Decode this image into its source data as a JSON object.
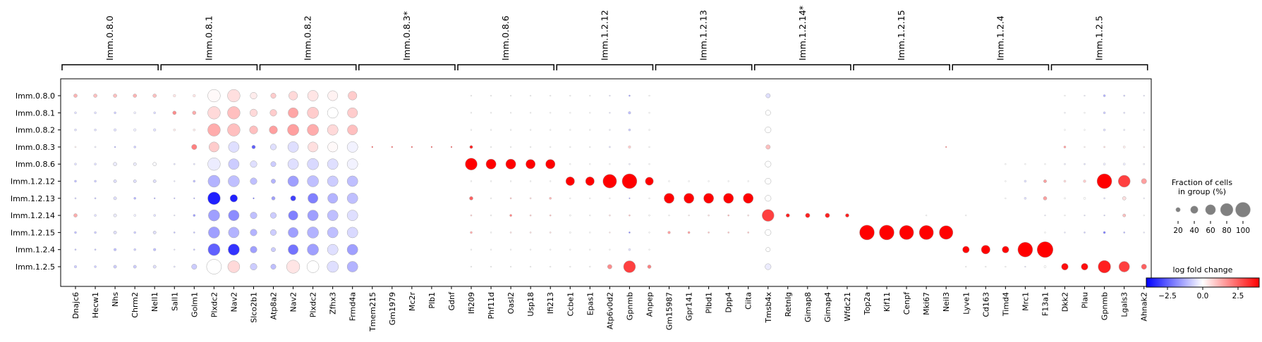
{
  "chart_data": {
    "type": "dotplot",
    "groups": [
      "Imm.0.8.0",
      "Imm.0.8.1",
      "Imm.0.8.2",
      "Imm.0.8.3",
      "Imm.0.8.6",
      "Imm.1.2.12",
      "Imm.1.2.13",
      "Imm.1.2.14",
      "Imm.1.2.15",
      "Imm.1.2.4",
      "Imm.1.2.5"
    ],
    "gene_groups": [
      {
        "label": "Imm.0.8.0",
        "genes": [
          "Dnajc6",
          "Hecw1",
          "Nhs",
          "Chrm2",
          "Nell1"
        ]
      },
      {
        "label": "Imm.0.8.1",
        "genes": [
          "Sall1",
          "Golm1",
          "Plxdc2",
          "Nav2",
          "Slco2b1"
        ]
      },
      {
        "label": "Imm.0.8.2",
        "genes": [
          "Atp8a2",
          "Nav2",
          "Plxdc2",
          "Zfhx3",
          "Frmd4a"
        ]
      },
      {
        "label": "Imm.0.8.3*",
        "genes": [
          "Tmem215",
          "Gm1979",
          "Mc2r",
          "Plb1",
          "Gdnf"
        ]
      },
      {
        "label": "Imm.0.8.6",
        "genes": [
          "Ifi209",
          "Phf11d",
          "Oasl2",
          "Usp18",
          "Ifi213"
        ]
      },
      {
        "label": "Imm.1.2.12",
        "genes": [
          "Ccbe1",
          "Epas1",
          "Atp6v0d2",
          "Gpnmb",
          "Anpep"
        ]
      },
      {
        "label": "Imm.1.2.13",
        "genes": [
          "Gm15987",
          "Gpr141",
          "Plbd1",
          "Dpp4",
          "Ciita"
        ]
      },
      {
        "label": "Imm.1.2.14*",
        "genes": [
          "Tmsb4x",
          "Retnlg",
          "Gimap8",
          "Gimap4",
          "Wfdc21"
        ]
      },
      {
        "label": "Imm.1.2.15",
        "genes": [
          "Top2a",
          "Kif11",
          "Cenpf",
          "Mki67",
          "Neil3"
        ]
      },
      {
        "label": "Imm.1.2.4",
        "genes": [
          "Lyve1",
          "Cd163",
          "Timd4",
          "Mrc1",
          "F13a1"
        ]
      },
      {
        "label": "Imm.1.2.5",
        "genes": [
          "Dkk2",
          "Plau",
          "Gpnmb",
          "Lgals3",
          "Ahnak2"
        ]
      }
    ],
    "fraction_pct": [
      [
        15,
        15,
        15,
        15,
        15,
        10,
        10,
        80,
        80,
        35,
        25,
        50,
        65,
        60,
        50,
        0,
        0,
        0,
        0,
        0,
        2,
        2,
        2,
        2,
        2,
        2,
        2,
        3,
        5,
        2,
        0,
        0,
        0,
        0,
        0,
        20,
        0,
        0,
        0,
        0,
        0,
        0,
        0,
        0,
        0,
        0,
        0,
        0,
        0,
        0,
        2,
        2,
        8,
        5,
        3
      ],
      [
        8,
        8,
        8,
        8,
        8,
        15,
        15,
        80,
        80,
        40,
        35,
        60,
        70,
        65,
        60,
        0,
        0,
        0,
        0,
        0,
        2,
        2,
        2,
        2,
        2,
        2,
        2,
        3,
        10,
        2,
        0,
        0,
        0,
        0,
        0,
        25,
        0,
        0,
        0,
        0,
        0,
        0,
        0,
        0,
        0,
        0,
        0,
        0,
        0,
        0,
        3,
        3,
        8,
        5,
        3
      ],
      [
        8,
        8,
        10,
        10,
        10,
        8,
        8,
        80,
        80,
        45,
        45,
        70,
        70,
        65,
        60,
        0,
        0,
        0,
        0,
        0,
        3,
        3,
        3,
        3,
        3,
        3,
        3,
        3,
        8,
        3,
        0,
        0,
        0,
        0,
        0,
        30,
        0,
        0,
        0,
        0,
        0,
        0,
        0,
        0,
        0,
        0,
        0,
        0,
        0,
        0,
        3,
        3,
        8,
        5,
        3
      ],
      [
        5,
        5,
        4,
        8,
        0,
        0,
        25,
        60,
        65,
        15,
        30,
        65,
        60,
        60,
        65,
        2,
        2,
        2,
        2,
        2,
        12,
        3,
        3,
        3,
        2,
        2,
        2,
        5,
        10,
        2,
        0,
        0,
        0,
        0,
        0,
        20,
        0,
        0,
        0,
        0,
        0,
        0,
        0,
        0,
        2,
        0,
        0,
        0,
        0,
        0,
        8,
        3,
        5,
        8,
        4
      ],
      [
        8,
        8,
        15,
        12,
        15,
        5,
        5,
        80,
        65,
        35,
        25,
        65,
        70,
        65,
        65,
        0,
        0,
        0,
        0,
        0,
        75,
        60,
        60,
        55,
        55,
        3,
        3,
        3,
        5,
        3,
        0,
        0,
        0,
        0,
        0,
        30,
        0,
        0,
        0,
        0,
        0,
        0,
        0,
        0,
        0,
        0,
        0,
        2,
        2,
        2,
        5,
        5,
        8,
        8,
        5
      ],
      [
        8,
        8,
        12,
        12,
        12,
        2,
        8,
        75,
        70,
        35,
        20,
        65,
        70,
        65,
        65,
        0,
        0,
        0,
        0,
        0,
        3,
        3,
        2,
        3,
        3,
        50,
        50,
        90,
        100,
        45,
        3,
        2,
        2,
        2,
        2,
        30,
        0,
        0,
        0,
        0,
        0,
        0,
        0,
        0,
        0,
        0,
        0,
        2,
        8,
        12,
        8,
        10,
        100,
        75,
        25
      ],
      [
        5,
        5,
        12,
        8,
        4,
        3,
        2,
        80,
        40,
        4,
        15,
        25,
        60,
        60,
        65,
        0,
        0,
        0,
        0,
        0,
        15,
        3,
        5,
        5,
        8,
        3,
        3,
        3,
        2,
        3,
        60,
        60,
        60,
        60,
        60,
        30,
        0,
        0,
        0,
        0,
        0,
        0,
        0,
        0,
        0,
        0,
        0,
        2,
        8,
        15,
        5,
        8,
        5,
        15,
        3
      ],
      [
        15,
        8,
        12,
        8,
        8,
        3,
        8,
        70,
        65,
        35,
        30,
        55,
        65,
        65,
        65,
        0,
        0,
        0,
        0,
        0,
        5,
        3,
        8,
        5,
        5,
        5,
        3,
        5,
        5,
        5,
        3,
        3,
        5,
        5,
        5,
        75,
        15,
        20,
        20,
        15,
        0,
        0,
        0,
        2,
        0,
        2,
        0,
        0,
        0,
        2,
        3,
        3,
        3,
        12,
        3
      ],
      [
        8,
        8,
        12,
        8,
        12,
        5,
        5,
        70,
        65,
        35,
        30,
        60,
        70,
        65,
        65,
        0,
        0,
        0,
        0,
        0,
        8,
        2,
        5,
        5,
        5,
        5,
        3,
        3,
        5,
        3,
        10,
        8,
        5,
        5,
        5,
        30,
        0,
        0,
        0,
        0,
        100,
        100,
        95,
        95,
        90,
        0,
        0,
        0,
        0,
        2,
        3,
        5,
        8,
        5,
        3
      ],
      [
        5,
        5,
        10,
        8,
        10,
        3,
        5,
        75,
        70,
        35,
        20,
        60,
        70,
        65,
        65,
        0,
        0,
        0,
        0,
        0,
        2,
        2,
        2,
        2,
        2,
        2,
        2,
        3,
        8,
        2,
        0,
        0,
        0,
        0,
        0,
        20,
        0,
        0,
        0,
        0,
        0,
        0,
        0,
        0,
        0,
        35,
        50,
        35,
        100,
        110,
        0,
        0,
        0,
        0,
        0
      ],
      [
        10,
        8,
        12,
        12,
        12,
        5,
        25,
        100,
        75,
        35,
        25,
        85,
        75,
        70,
        65,
        0,
        0,
        0,
        0,
        0,
        3,
        3,
        3,
        3,
        3,
        3,
        4,
        20,
        75,
        15,
        0,
        0,
        0,
        0,
        0,
        30,
        0,
        0,
        0,
        0,
        0,
        0,
        0,
        0,
        0,
        2,
        2,
        2,
        2,
        8,
        35,
        35,
        80,
        65,
        25
      ]
    ],
    "log_fold_change": [
      [
        1.2,
        1.0,
        1.0,
        1.2,
        1.0,
        0.4,
        0.4,
        0.1,
        0.5,
        0.3,
        0.8,
        0.6,
        0.4,
        0.2,
        0.8,
        0,
        0,
        0,
        0,
        0,
        0,
        0,
        0,
        0,
        0,
        0,
        0,
        -0.5,
        -1.5,
        0,
        0,
        0,
        0,
        0,
        0,
        -0.5,
        0,
        0,
        0,
        0,
        0,
        0,
        0,
        0,
        0,
        0,
        0,
        0,
        0,
        0,
        0,
        -0.3,
        -1.2,
        -0.8,
        -0.5
      ],
      [
        -0.5,
        -0.5,
        -0.8,
        -0.3,
        -0.6,
        1.8,
        1.3,
        0.6,
        1.0,
        0.6,
        0.8,
        1.4,
        0.8,
        0.0,
        0.8,
        0,
        0,
        0,
        0,
        0,
        0,
        0,
        0,
        0,
        0,
        0,
        0,
        -0.5,
        -1.0,
        0,
        0,
        0,
        0,
        0,
        0,
        0,
        0,
        0,
        0,
        0,
        0,
        0,
        0,
        0,
        0,
        0,
        0,
        0,
        0,
        0,
        -0.2,
        0,
        -0.8,
        -0.5,
        -0.3
      ],
      [
        -0.5,
        -0.5,
        -0.5,
        -0.3,
        -0.5,
        0.3,
        0.3,
        1.3,
        1.0,
        1.0,
        1.5,
        1.5,
        1.3,
        0.6,
        1.0,
        0,
        0,
        0,
        0,
        0,
        0,
        0,
        0,
        0,
        0,
        0,
        0,
        -0.3,
        -0.8,
        0,
        0,
        0,
        0,
        0,
        0,
        0,
        0,
        0,
        0,
        0,
        0,
        0,
        0,
        0,
        0,
        0,
        0,
        0,
        0,
        0,
        0,
        0,
        -0.5,
        -0.3,
        -0.2
      ],
      [
        0.2,
        -0.3,
        -1.5,
        -0.8,
        0,
        0,
        2.0,
        0.8,
        -0.5,
        -2.5,
        -0.5,
        -0.5,
        0.5,
        0.1,
        -0.2,
        3.5,
        3.5,
        3.5,
        3.5,
        3.5,
        3.5,
        0,
        0,
        0,
        0,
        0,
        0,
        -0.5,
        0.8,
        0,
        0,
        0,
        0,
        0,
        0,
        1.0,
        0,
        0,
        0,
        0,
        0,
        0,
        0,
        0,
        2.5,
        0,
        0,
        0,
        0,
        0,
        1.5,
        0.2,
        0.6,
        0.3,
        0.3
      ],
      [
        -0.5,
        -0.5,
        -0.3,
        -0.3,
        -0.1,
        -0.5,
        -0.5,
        -0.3,
        -0.8,
        -0.5,
        -0.8,
        -0.5,
        -0.6,
        -0.5,
        -0.2,
        0,
        0,
        0,
        0,
        0,
        4.0,
        4.0,
        4.0,
        4.0,
        4.0,
        0,
        0,
        0,
        -0.3,
        0,
        0,
        0,
        0,
        0,
        0,
        0,
        0,
        0,
        0,
        0,
        0,
        0,
        0,
        0,
        0,
        0,
        0,
        0,
        0,
        0,
        -0.3,
        -0.5,
        -0.3,
        -0.3,
        -0.3
      ],
      [
        -1.0,
        -0.8,
        -0.5,
        -0.5,
        -0.5,
        -0.5,
        -1.0,
        -1.2,
        -1.0,
        -1.0,
        -1.2,
        -1.5,
        -1.0,
        -0.8,
        -1.0,
        0,
        0,
        0,
        0,
        0,
        0,
        0,
        0,
        0,
        0,
        4.0,
        4.0,
        4.0,
        4.0,
        4.0,
        0,
        0,
        0,
        0,
        0,
        0,
        0,
        0,
        0,
        0,
        0,
        0,
        0,
        0,
        0,
        0,
        0,
        0,
        -0.5,
        1.5,
        0.6,
        0.8,
        4.0,
        3.0,
        1.5
      ],
      [
        -0.8,
        -1.0,
        -0.5,
        -1.2,
        -1.5,
        -1.2,
        -1.5,
        -3.5,
        -3.5,
        -2.5,
        -1.5,
        -3.0,
        -2.0,
        -1.2,
        -1.0,
        0,
        0,
        0,
        0,
        0,
        2.5,
        0,
        1.0,
        0.6,
        1.2,
        0,
        0,
        0,
        -1.5,
        0,
        4.0,
        4.0,
        4.0,
        4.0,
        4.0,
        0,
        0,
        0,
        0,
        0,
        0,
        0,
        0,
        0,
        0,
        0,
        0,
        0,
        -0.5,
        1.5,
        0,
        0,
        -0.5,
        0.5,
        -0.3
      ],
      [
        1.3,
        -0.5,
        -0.3,
        -0.3,
        -0.5,
        -0.5,
        -1.5,
        -1.5,
        -1.8,
        -1.0,
        -0.8,
        -2.0,
        -1.5,
        -1.0,
        -0.5,
        0,
        0,
        0,
        0,
        0,
        0.8,
        0,
        2.0,
        0.8,
        1.0,
        0,
        0,
        0.5,
        1.0,
        0,
        0,
        0.3,
        0.5,
        1.2,
        0.5,
        3.0,
        3.5,
        3.5,
        3.5,
        3.5,
        0,
        0,
        0,
        0,
        0,
        0,
        0,
        0,
        -0.5,
        -0.3,
        0,
        -0.5,
        -0.8,
        1.0,
        0
      ],
      [
        -1.0,
        -0.8,
        -0.5,
        -0.8,
        -0.5,
        -1.0,
        -1.0,
        -1.5,
        -1.2,
        -1.2,
        -0.8,
        -1.5,
        -1.2,
        -1.0,
        -0.6,
        0,
        0,
        0,
        0,
        0,
        1.3,
        0,
        0.5,
        0.5,
        0.5,
        0,
        0,
        0.5,
        -2.0,
        0,
        1.5,
        1.5,
        1.0,
        1.0,
        1.0,
        0,
        0,
        0,
        0,
        0,
        4.0,
        4.0,
        4.0,
        4.0,
        4.0,
        0,
        0,
        0,
        0,
        0,
        -0.5,
        -0.8,
        -2.0,
        -1.2,
        -0.5
      ],
      [
        -1.0,
        -1.0,
        -1.0,
        -0.8,
        -1.0,
        -0.5,
        -1.0,
        -2.5,
        -3.2,
        -1.5,
        -0.8,
        -2.2,
        -1.5,
        -0.5,
        -1.5,
        0,
        0,
        0,
        0,
        0,
        0,
        0,
        0,
        0,
        0,
        0,
        0,
        0,
        -0.5,
        0,
        0,
        0,
        0,
        0,
        0,
        0,
        0,
        0,
        0,
        0,
        0,
        0,
        0,
        0,
        0,
        4.0,
        4.0,
        4.0,
        4.0,
        4.0,
        0,
        0,
        0,
        0,
        0
      ],
      [
        -0.8,
        -0.8,
        -0.8,
        -0.8,
        -0.5,
        -0.5,
        -0.8,
        0.0,
        0.6,
        -0.8,
        -1.0,
        0.4,
        0.0,
        -0.5,
        -1.2,
        0,
        0,
        0,
        0,
        0,
        0,
        0,
        0,
        0,
        0,
        0,
        0,
        1.8,
        3.0,
        2.0,
        0,
        0,
        0,
        0,
        0,
        -0.3,
        0,
        0,
        0,
        0,
        0,
        0,
        0,
        0,
        0,
        0,
        0,
        0,
        -0.5,
        0,
        3.8,
        3.8,
        3.5,
        3.0,
        2.5
      ]
    ],
    "legend_size": {
      "title": "Fraction of cells\nin group (%)",
      "values": [
        20,
        40,
        60,
        80,
        100
      ],
      "labels": [
        "20",
        "40",
        "60",
        "80",
        "100"
      ]
    },
    "legend_color": {
      "title": "log fold change",
      "ticks": [
        -2.5,
        0.0,
        2.5
      ],
      "labels": [
        "−2.5",
        "0.0",
        "2.5"
      ],
      "vmin": -4,
      "vmax": 4,
      "cmap": "bwr"
    }
  },
  "colors": {
    "low": "#0000ff",
    "mid": "#ffffff",
    "high": "#ff0000",
    "edge": "#a9a9a9",
    "legend_dot": "#808080"
  }
}
